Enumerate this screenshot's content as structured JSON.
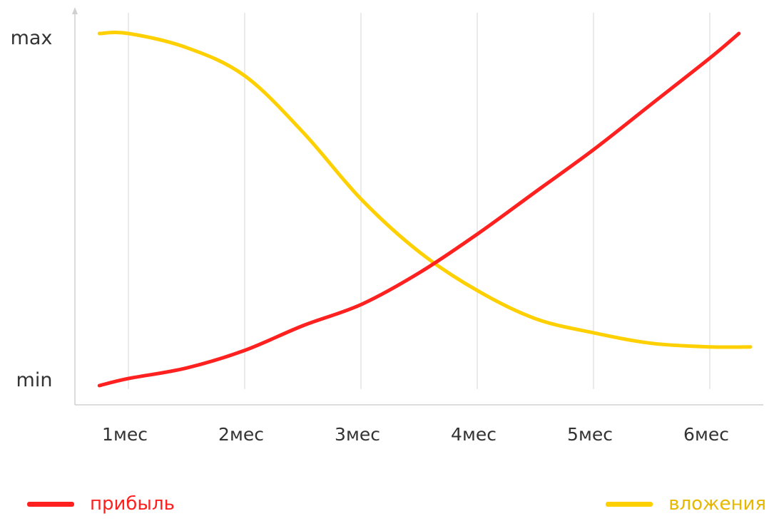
{
  "chart_data": {
    "type": "line",
    "categories": [
      "1мес",
      "2мес",
      "3мес",
      "4мес",
      "5мес",
      "6мес"
    ],
    "y_tick_labels": {
      "max": "max",
      "min": "min"
    },
    "ylim": [
      0,
      100
    ],
    "grid": "vertical",
    "legend": "bottom",
    "series": [
      {
        "name": "прибыль",
        "color": "#ff2020",
        "points": [
          [
            0.75,
            0
          ],
          [
            1,
            2
          ],
          [
            1.5,
            5
          ],
          [
            2,
            10
          ],
          [
            2.5,
            17
          ],
          [
            3,
            23
          ],
          [
            3.5,
            32
          ],
          [
            4,
            43
          ],
          [
            4.5,
            55
          ],
          [
            5,
            67
          ],
          [
            5.5,
            80
          ],
          [
            6,
            93
          ],
          [
            6.25,
            100
          ]
        ]
      },
      {
        "name": "вложения",
        "color": "#ffd000",
        "points": [
          [
            0.75,
            100
          ],
          [
            1,
            100
          ],
          [
            1.5,
            96
          ],
          [
            2,
            88
          ],
          [
            2.5,
            72
          ],
          [
            3,
            53
          ],
          [
            3.5,
            38
          ],
          [
            4,
            27
          ],
          [
            4.5,
            19
          ],
          [
            5,
            15
          ],
          [
            5.5,
            12
          ],
          [
            6,
            11
          ],
          [
            6.35,
            11
          ]
        ]
      }
    ]
  },
  "legend": {
    "profit_label": "прибыль",
    "profit_color": "#ff2020",
    "invest_label": "вложения",
    "invest_color": "#ffd000",
    "invest_text_color": "#e6b800"
  }
}
